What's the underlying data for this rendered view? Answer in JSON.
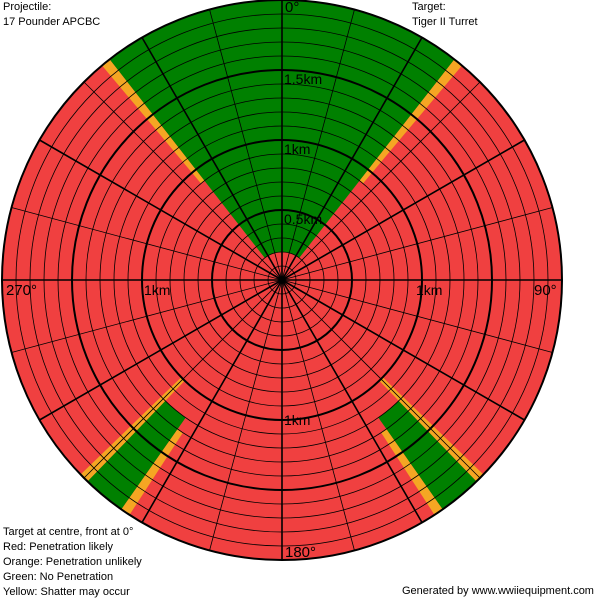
{
  "header": {
    "projectile_label": "Projectile:",
    "projectile_value": "17 Pounder APCBC",
    "target_label": "Target:",
    "target_value": "Tiger II Turret"
  },
  "legend": [
    "Target at centre, front at 0°",
    "Red: Penetration likely",
    "Orange: Penetration unlikely",
    "Green: No Penetration",
    "Yellow: Shatter may occur"
  ],
  "footer": "Generated by www.wwiiequipment.com",
  "colors": {
    "red": "#f04040",
    "orange": "#f5a623",
    "green": "#008000",
    "yellow": "#ffee00"
  },
  "chart_data": {
    "type": "polar",
    "max_range_km": 2.0,
    "ring_step_km": 0.1,
    "major_ring_step_km": 0.5,
    "spoke_step_deg": 15,
    "major_spoke_step_deg": 30,
    "angle_labels": [
      {
        "text": "0°",
        "angle": 0
      },
      {
        "text": "90°",
        "angle": 90
      },
      {
        "text": "180°",
        "angle": 180
      },
      {
        "text": "270°",
        "angle": 270
      }
    ],
    "range_labels": [
      {
        "text": "0.5km",
        "angle": 0,
        "range": 0.5
      },
      {
        "text": "1km",
        "angle": 0,
        "range": 1.0
      },
      {
        "text": "1.5km",
        "angle": 0,
        "range": 1.5
      },
      {
        "text": "1km",
        "angle": 90,
        "range": 1.0
      },
      {
        "text": "1km",
        "angle": 180,
        "range": 1.0
      },
      {
        "text": "1km",
        "angle": 270,
        "range": 1.0
      }
    ],
    "zones": [
      {
        "color": "green",
        "from_angle": -38,
        "to_angle": 38,
        "min_range": 0.2,
        "max_range": 2.0
      },
      {
        "color": "orange",
        "from_angle": 38,
        "to_angle": 40,
        "min_range": 0.9,
        "max_range": 2.0
      },
      {
        "color": "orange",
        "from_angle": -40,
        "to_angle": -38,
        "min_range": 0.9,
        "max_range": 2.0
      },
      {
        "color": "green",
        "from_angle": 136,
        "to_angle": 145,
        "min_range": 1.2,
        "max_range": 2.0
      },
      {
        "color": "orange",
        "from_angle": 134,
        "to_angle": 136,
        "min_range": 1.0,
        "max_range": 2.0
      },
      {
        "color": "orange",
        "from_angle": 145,
        "to_angle": 147,
        "min_range": 1.3,
        "max_range": 2.0
      },
      {
        "color": "green",
        "from_angle": 215,
        "to_angle": 224,
        "min_range": 1.2,
        "max_range": 2.0
      },
      {
        "color": "orange",
        "from_angle": 224,
        "to_angle": 226,
        "min_range": 1.0,
        "max_range": 2.0
      },
      {
        "color": "orange",
        "from_angle": 213,
        "to_angle": 215,
        "min_range": 1.3,
        "max_range": 2.0
      }
    ],
    "default_zone_color": "red"
  }
}
